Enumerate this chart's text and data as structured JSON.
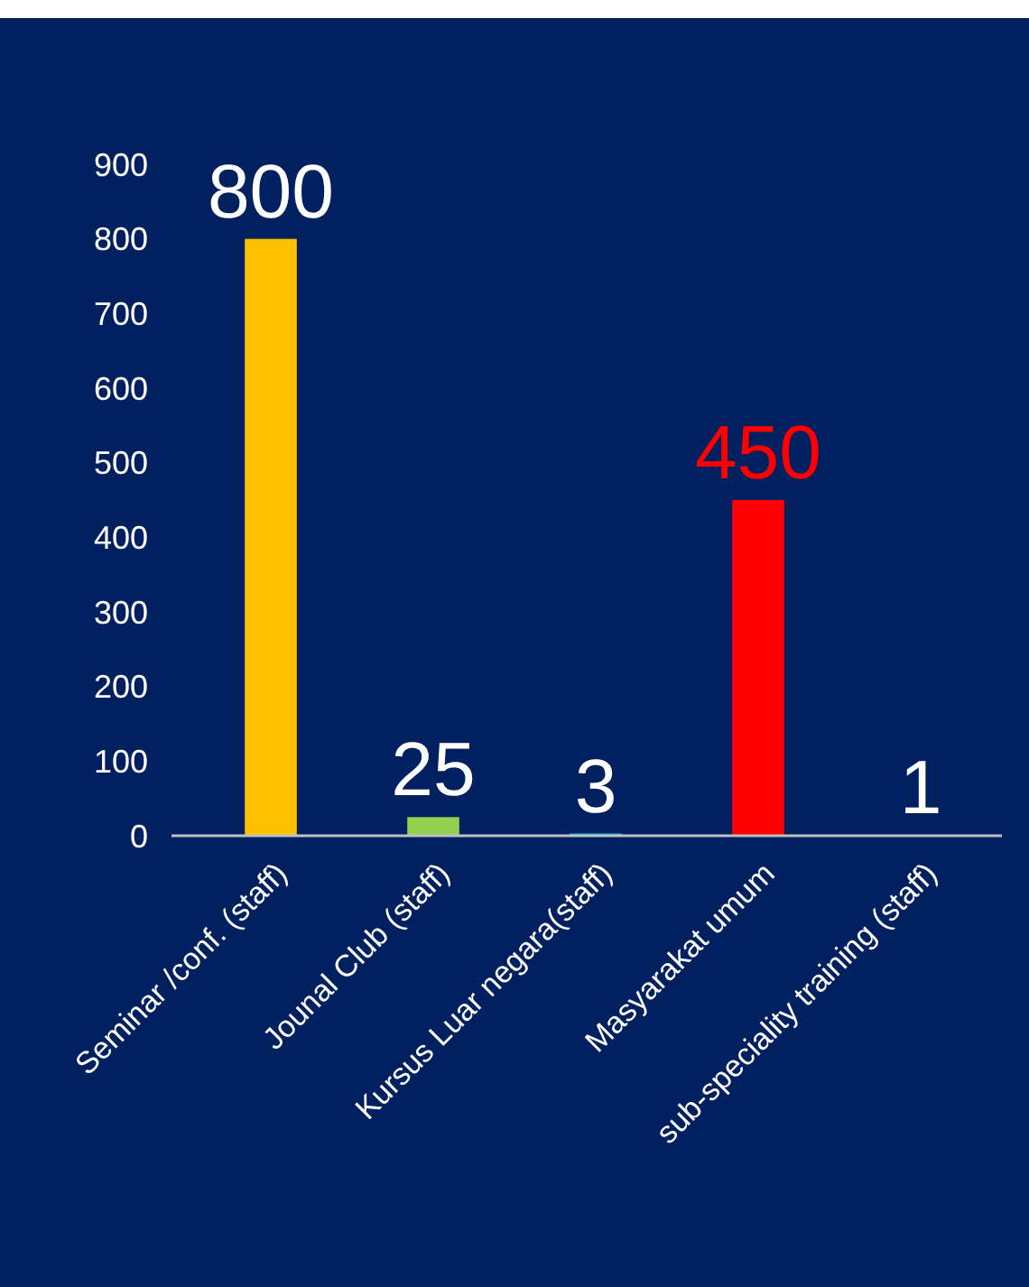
{
  "chart_data": {
    "type": "bar",
    "categories": [
      "Seminar /conf. (staff)",
      "Jounal Club (staff)",
      "Kursus Luar negara(staff)",
      "Masyarakat umum",
      "sub-speciality training (staff)"
    ],
    "values": [
      800,
      25,
      3,
      450,
      1
    ],
    "colors": [
      "#ffc000",
      "#92d050",
      "#00b0f0",
      "#ff0000",
      "#7030a0"
    ],
    "ylim": [
      0,
      900
    ],
    "yticks": [
      0,
      100,
      200,
      300,
      400,
      500,
      600,
      700,
      800,
      900
    ],
    "grid": false,
    "data_labels": true
  }
}
